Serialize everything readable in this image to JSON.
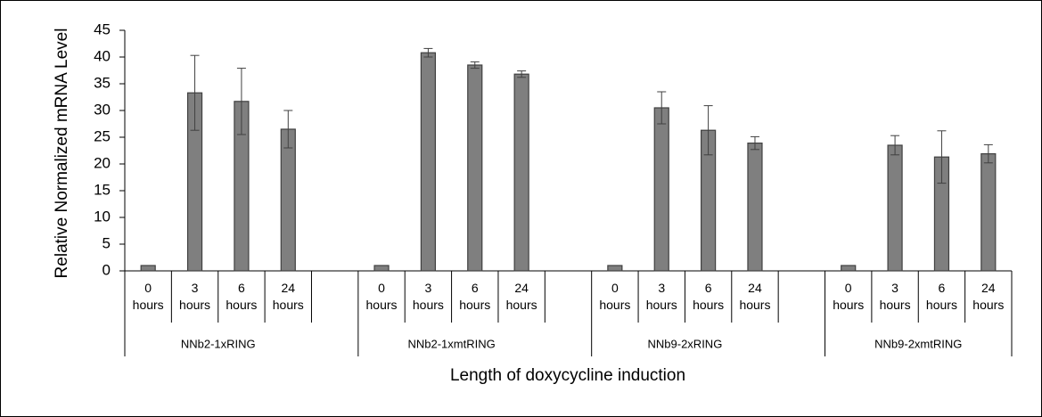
{
  "chart_data": {
    "type": "bar",
    "ylabel": "Relative Normalized mRNA Level",
    "xlabel": "Length of doxycycline induction",
    "groups": [
      "NNb2-1xRING",
      "NNb2-1xmtRING",
      "NNb9-2xRING",
      "NNb9-2xmtRING"
    ],
    "categories": [
      "0 hours",
      "3 hours",
      "6 hours",
      "24 hours",
      null,
      "0 hours",
      "3 hours",
      "6 hours",
      "24 hours",
      null,
      "0 hours",
      "3 hours",
      "6 hours",
      "24 hours",
      null,
      "0 hours",
      "3 hours",
      "6 hours",
      "24 hours"
    ],
    "values": [
      1,
      33.3,
      31.7,
      26.5,
      null,
      1,
      40.8,
      38.5,
      36.8,
      null,
      1,
      30.5,
      26.3,
      23.9,
      null,
      1,
      23.5,
      21.3,
      21.9
    ],
    "errors": [
      0,
      7,
      6.2,
      3.5,
      null,
      0,
      0.8,
      0.6,
      0.6,
      null,
      0,
      3,
      4.6,
      1.2,
      null,
      0,
      1.8,
      4.9,
      1.7
    ],
    "color": "#7f7f7f",
    "ylim": [
      0,
      45
    ],
    "yticks": [
      0,
      5,
      10,
      15,
      20,
      25,
      30,
      35,
      40,
      45
    ]
  }
}
